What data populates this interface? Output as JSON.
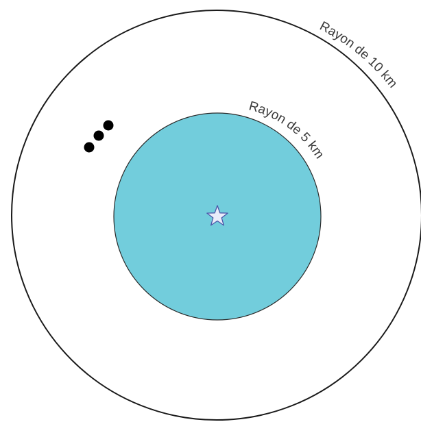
{
  "outer_circle": {
    "label": "Rayon de 10 km",
    "radius_km": 10,
    "stroke": "#1a1a1a",
    "fill": "#ffffff"
  },
  "inner_circle": {
    "label": "Rayon de 5 km",
    "radius_km": 5,
    "stroke": "#2a2a2a",
    "fill": "#72cddc"
  },
  "center_marker": {
    "icon": "star-icon",
    "fill": "#e9ecfa",
    "stroke": "#4a55a8"
  },
  "dots": {
    "count": 3,
    "color": "#000000"
  }
}
